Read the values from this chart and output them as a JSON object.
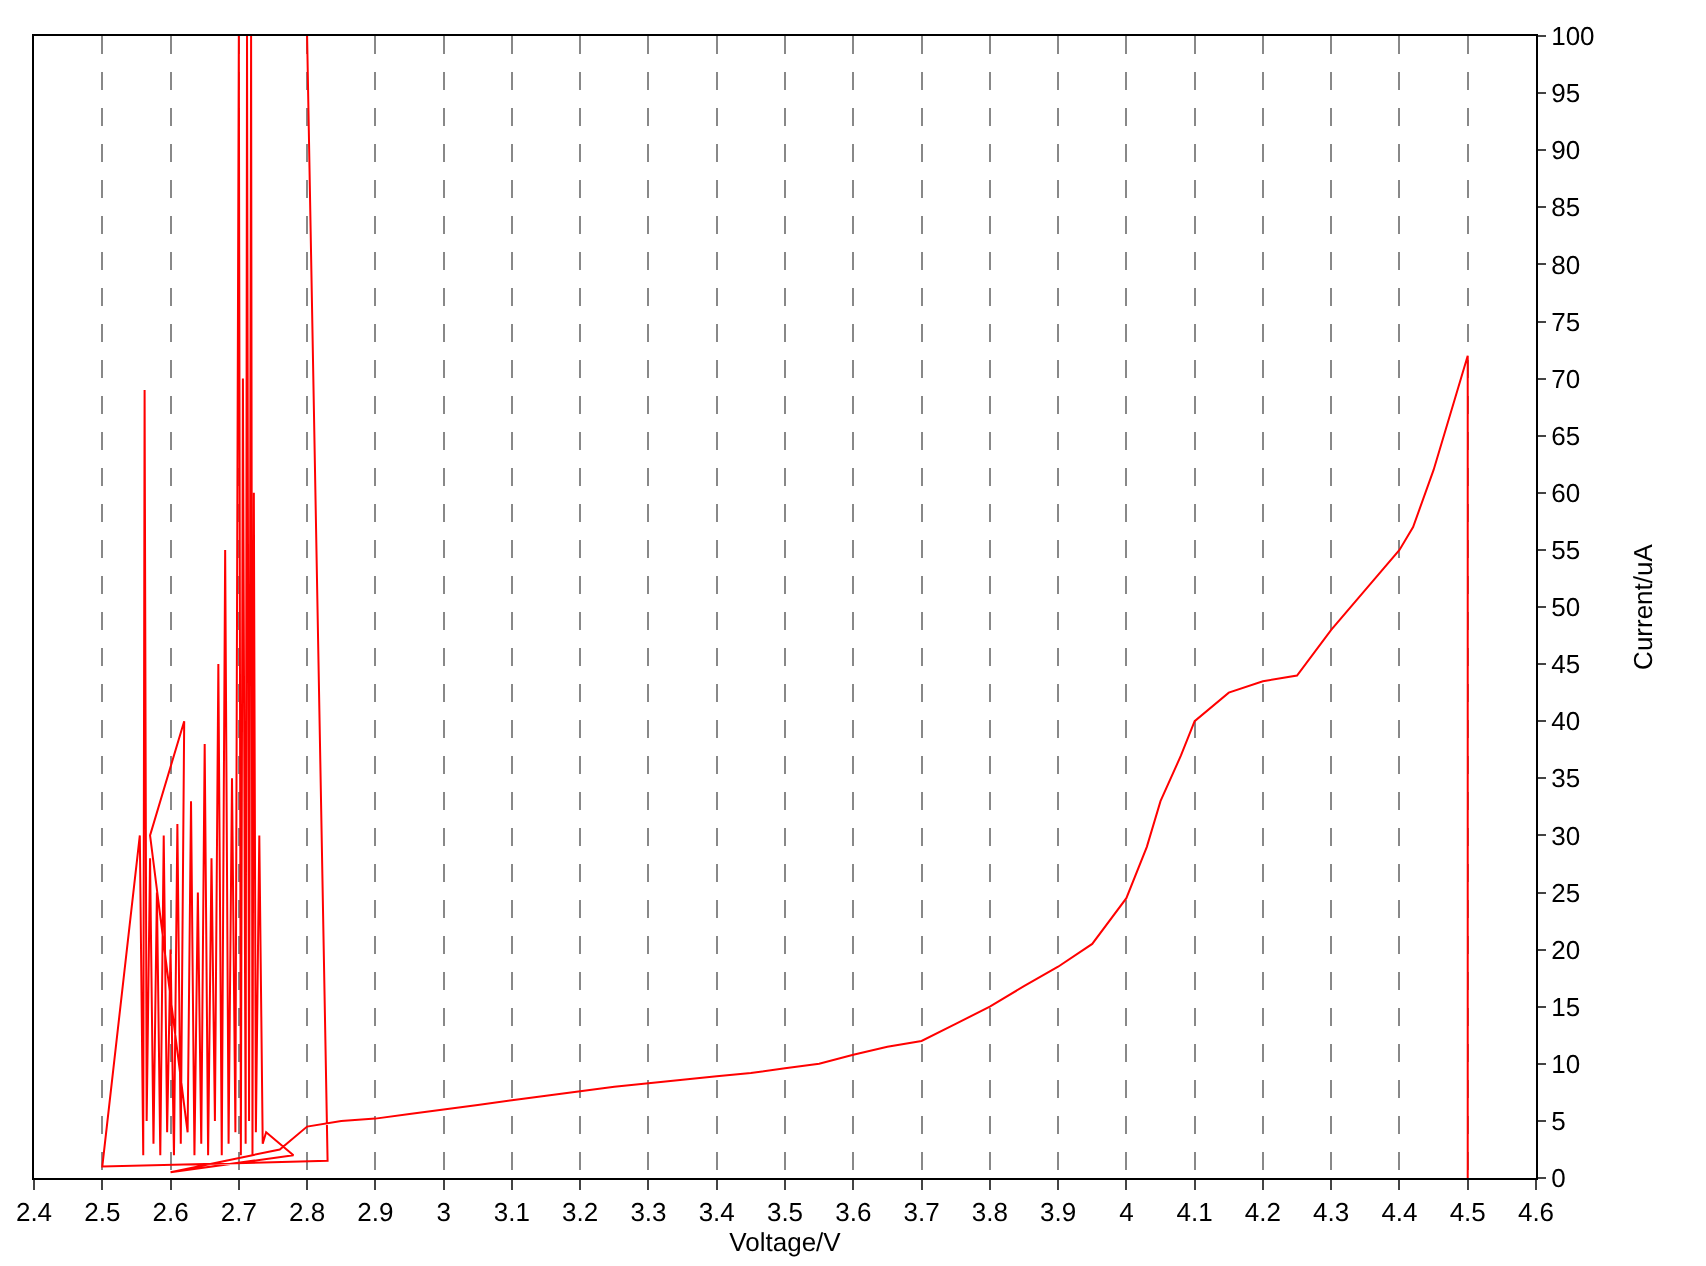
{
  "chart_data": {
    "type": "line",
    "xlabel": "Voltage/V",
    "ylabel": "Current/uA",
    "color": "#ff0000",
    "grid": "x",
    "line_style": "solid",
    "xlim": [
      2.4,
      4.6
    ],
    "ylim": [
      0,
      100
    ],
    "xticks": [
      2.4,
      2.5,
      2.6,
      2.7,
      2.8,
      2.9,
      3,
      3.1,
      3.2,
      3.3,
      3.4,
      3.5,
      3.6,
      3.7,
      3.8,
      3.9,
      4,
      4.1,
      4.2,
      4.3,
      4.4,
      4.5,
      4.6
    ],
    "yticks": [
      0,
      5,
      10,
      15,
      20,
      25,
      30,
      35,
      40,
      45,
      50,
      55,
      60,
      65,
      70,
      75,
      80,
      85,
      90,
      95,
      100
    ],
    "x": [
      2.8,
      2.83,
      2.5,
      2.555,
      2.56,
      2.562,
      2.565,
      2.57,
      2.575,
      2.58,
      2.585,
      2.59,
      2.595,
      2.6,
      2.605,
      2.61,
      2.615,
      2.62,
      2.57,
      2.625,
      2.63,
      2.635,
      2.64,
      2.645,
      2.65,
      2.655,
      2.66,
      2.665,
      2.67,
      2.675,
      2.68,
      2.685,
      2.69,
      2.695,
      2.7,
      2.703,
      2.706,
      2.71,
      2.712,
      2.715,
      2.718,
      2.72,
      2.722,
      2.725,
      2.73,
      2.735,
      2.74,
      2.78,
      2.6,
      2.72,
      2.76,
      2.8,
      2.85,
      2.9,
      2.95,
      3,
      3.05,
      3.1,
      3.15,
      3.2,
      3.25,
      3.3,
      3.35,
      3.4,
      3.45,
      3.5,
      3.55,
      3.6,
      3.65,
      3.7,
      3.75,
      3.8,
      3.85,
      3.9,
      3.95,
      4,
      4.03,
      4.05,
      4.08,
      4.1,
      4.15,
      4.2,
      4.25,
      4.3,
      4.35,
      4.4,
      4.42,
      4.45,
      4.48,
      4.5,
      4.5
    ],
    "values": [
      100,
      1.5,
      1,
      30,
      2,
      69,
      5,
      28,
      3,
      25,
      2,
      30,
      4,
      20,
      2,
      31,
      3,
      40,
      30,
      4,
      33,
      2,
      25,
      3,
      38,
      2,
      28,
      5,
      45,
      2,
      55,
      3,
      35,
      4,
      100,
      2,
      70,
      3,
      100,
      5,
      100,
      2,
      60,
      4,
      30,
      3,
      4,
      2,
      0.5,
      2,
      2.5,
      4.5,
      5,
      5.2,
      5.6,
      6,
      6.4,
      6.8,
      7.2,
      7.6,
      8,
      8.3,
      8.6,
      8.9,
      9.2,
      9.6,
      10,
      10.8,
      11.5,
      12,
      13.5,
      15,
      16.8,
      18.5,
      20.5,
      24.5,
      29,
      33,
      37,
      40,
      42.5,
      43.5,
      44,
      48,
      51.5,
      55,
      57,
      62,
      68,
      72,
      0
    ]
  }
}
